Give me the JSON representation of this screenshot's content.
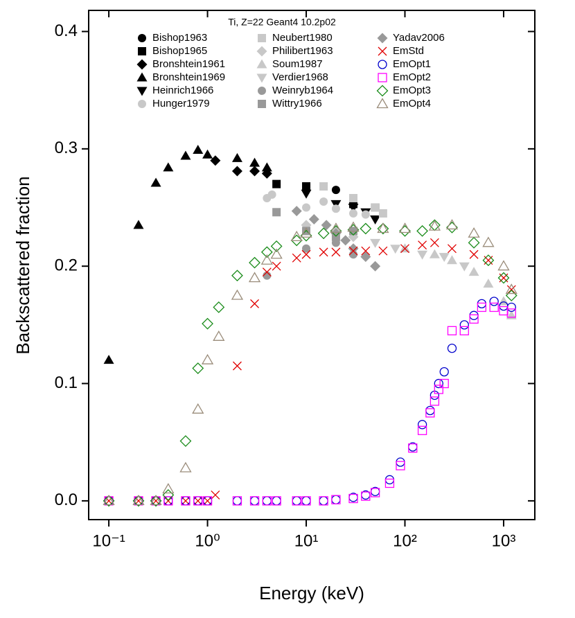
{
  "chart_data": {
    "type": "scatter",
    "annotation": "Ti, Z=22 Geant4 10.2p02",
    "x_label": "Energy (keV)",
    "y_label": "Backscattered fraction",
    "xscale": "log",
    "xlim": [
      0.0625,
      2070
    ],
    "ylim": [
      -0.016,
      0.418
    ],
    "xticks": [
      {
        "value": 0.1,
        "label": "10⁻¹"
      },
      {
        "value": 1,
        "label": "10⁰"
      },
      {
        "value": 10,
        "label": "10¹"
      },
      {
        "value": 100,
        "label": "10²"
      },
      {
        "value": 1000,
        "label": "10³"
      }
    ],
    "yticks": [
      {
        "value": 0,
        "label": "0.0"
      },
      0.1,
      0.2,
      0.3,
      0.4
    ],
    "series": [
      {
        "name": "Bishop1963",
        "color": "#000000",
        "marker": "circle",
        "filled": true,
        "x": [
          10,
          20,
          30
        ],
        "values": [
          0.265,
          0.265,
          0.255
        ]
      },
      {
        "name": "Bishop1965",
        "color": "#000000",
        "marker": "square",
        "filled": true,
        "x": [
          5,
          10,
          30,
          50
        ],
        "values": [
          0.27,
          0.268,
          0.253,
          0.25
        ]
      },
      {
        "name": "Bronshtein1961",
        "color": "#000000",
        "marker": "diamond",
        "filled": true,
        "x": [
          1.2,
          2,
          3,
          4
        ],
        "values": [
          0.29,
          0.281,
          0.281,
          0.279
        ]
      },
      {
        "name": "Bronshtein1969",
        "color": "#000000",
        "marker": "triangle",
        "filled": true,
        "x": [
          0.1,
          0.2,
          0.3,
          0.4,
          0.6,
          0.8,
          1,
          2,
          3,
          4
        ],
        "values": [
          0.12,
          0.235,
          0.271,
          0.284,
          0.294,
          0.299,
          0.295,
          0.292,
          0.288,
          0.284
        ]
      },
      {
        "name": "Heinrich1966",
        "color": "#000000",
        "marker": "triangle-down",
        "filled": true,
        "x": [
          10,
          20,
          30,
          40,
          50
        ],
        "values": [
          0.262,
          0.253,
          0.25,
          0.246,
          0.24
        ]
      },
      {
        "name": "Hunger1979",
        "color": "#c8c8c8",
        "marker": "circle",
        "filled": true,
        "x": [
          4,
          4.5,
          10,
          15,
          20,
          30,
          40
        ],
        "values": [
          0.258,
          0.261,
          0.25,
          0.255,
          0.249,
          0.245,
          0.244
        ]
      },
      {
        "name": "Neubert1980",
        "color": "#c8c8c8",
        "marker": "square",
        "filled": true,
        "x": [
          15,
          30,
          50,
          60
        ],
        "values": [
          0.268,
          0.258,
          0.25,
          0.245
        ]
      },
      {
        "name": "Philibert1963",
        "color": "#c8c8c8",
        "marker": "diamond",
        "filled": true,
        "x": [
          10,
          20,
          30
        ],
        "values": [
          0.235,
          0.23,
          0.225
        ]
      },
      {
        "name": "Soum1987",
        "color": "#c8c8c8",
        "marker": "triangle",
        "filled": true,
        "x": [
          100,
          200,
          300,
          500,
          700,
          1000,
          1200
        ],
        "values": [
          0.215,
          0.21,
          0.205,
          0.195,
          0.185,
          0.17,
          0.158
        ]
      },
      {
        "name": "Verdier1968",
        "color": "#c8c8c8",
        "marker": "triangle-down",
        "filled": true,
        "x": [
          50,
          80,
          150,
          250,
          400
        ],
        "values": [
          0.22,
          0.215,
          0.21,
          0.208,
          0.2
        ]
      },
      {
        "name": "Weinryb1964",
        "color": "#999999",
        "marker": "circle",
        "filled": true,
        "x": [
          4,
          10,
          20,
          30
        ],
        "values": [
          0.192,
          0.215,
          0.22,
          0.21
        ]
      },
      {
        "name": "Wittry1966",
        "color": "#999999",
        "marker": "square",
        "filled": true,
        "x": [
          5,
          10,
          20,
          30
        ],
        "values": [
          0.246,
          0.23,
          0.225,
          0.23
        ]
      },
      {
        "name": "Yadav2006",
        "color": "#999999",
        "marker": "diamond",
        "filled": true,
        "x": [
          8,
          12,
          16,
          20,
          25,
          30,
          40,
          50
        ],
        "values": [
          0.247,
          0.24,
          0.235,
          0.228,
          0.222,
          0.215,
          0.208,
          0.2
        ]
      },
      {
        "name": "EmStd",
        "color": "#e00000",
        "marker": "x",
        "filled": false,
        "x": [
          0.1,
          0.2,
          0.3,
          0.4,
          0.6,
          0.8,
          1,
          1.2,
          2,
          3,
          4,
          5,
          8,
          10,
          15,
          20,
          30,
          40,
          60,
          100,
          150,
          200,
          300,
          500,
          700,
          1000,
          1200
        ],
        "values": [
          0,
          0,
          0,
          0,
          0,
          0,
          0,
          0.005,
          0.115,
          0.168,
          0.195,
          0.2,
          0.207,
          0.21,
          0.212,
          0.212,
          0.213,
          0.213,
          0.213,
          0.215,
          0.218,
          0.22,
          0.215,
          0.21,
          0.205,
          0.19,
          0.18
        ]
      },
      {
        "name": "EmOpt1",
        "color": "#0000cc",
        "marker": "circle",
        "filled": false,
        "x": [
          0.1,
          0.2,
          0.3,
          0.4,
          0.6,
          0.8,
          1,
          2,
          3,
          4,
          5,
          8,
          10,
          15,
          20,
          30,
          40,
          50,
          70,
          90,
          120,
          150,
          180,
          200,
          220,
          250,
          300,
          400,
          500,
          600,
          800,
          1000,
          1200
        ],
        "values": [
          0,
          0,
          0,
          0,
          0,
          0,
          0,
          0,
          0,
          0,
          0,
          0,
          0,
          0,
          0.001,
          0.003,
          0.005,
          0.008,
          0.018,
          0.033,
          0.046,
          0.065,
          0.077,
          0.09,
          0.1,
          0.11,
          0.13,
          0.15,
          0.158,
          0.168,
          0.17,
          0.166,
          0.165
        ]
      },
      {
        "name": "EmOpt2",
        "color": "#ff00ff",
        "marker": "square",
        "filled": false,
        "x": [
          0.1,
          0.2,
          0.3,
          0.4,
          0.6,
          0.8,
          1,
          2,
          3,
          4,
          5,
          8,
          10,
          15,
          20,
          30,
          40,
          50,
          70,
          90,
          120,
          150,
          180,
          200,
          220,
          250,
          300,
          400,
          500,
          600,
          800,
          1000,
          1200
        ],
        "values": [
          0,
          0,
          0,
          0,
          0,
          0,
          0,
          0,
          0,
          0,
          0,
          0,
          0,
          0,
          0.001,
          0.002,
          0.004,
          0.007,
          0.015,
          0.03,
          0.045,
          0.06,
          0.075,
          0.085,
          0.095,
          0.1,
          0.145,
          0.145,
          0.155,
          0.165,
          0.165,
          0.162,
          0.16
        ]
      },
      {
        "name": "EmOpt3",
        "color": "#1a8c1a",
        "marker": "diamond",
        "filled": false,
        "x": [
          0.1,
          0.2,
          0.3,
          0.4,
          0.6,
          0.8,
          1,
          1.3,
          2,
          3,
          4,
          5,
          8,
          10,
          15,
          20,
          30,
          40,
          60,
          100,
          150,
          200,
          300,
          500,
          700,
          1000,
          1200
        ],
        "values": [
          0,
          0,
          0,
          0.005,
          0.051,
          0.113,
          0.151,
          0.165,
          0.192,
          0.203,
          0.212,
          0.217,
          0.222,
          0.226,
          0.228,
          0.23,
          0.231,
          0.232,
          0.232,
          0.23,
          0.23,
          0.235,
          0.233,
          0.22,
          0.205,
          0.19,
          0.175
        ]
      },
      {
        "name": "EmOpt4",
        "color": "#9a8c7a",
        "marker": "triangle",
        "filled": false,
        "x": [
          0.1,
          0.2,
          0.3,
          0.4,
          0.6,
          0.8,
          1,
          1.3,
          2,
          3,
          4,
          5,
          8,
          10,
          20,
          30,
          60,
          100,
          200,
          300,
          500,
          700,
          1000,
          1200
        ],
        "values": [
          0,
          0,
          0,
          0.01,
          0.028,
          0.078,
          0.12,
          0.14,
          0.175,
          0.19,
          0.205,
          0.21,
          0.225,
          0.228,
          0.232,
          0.233,
          0.232,
          0.232,
          0.234,
          0.235,
          0.228,
          0.22,
          0.2,
          0.18
        ]
      }
    ]
  }
}
